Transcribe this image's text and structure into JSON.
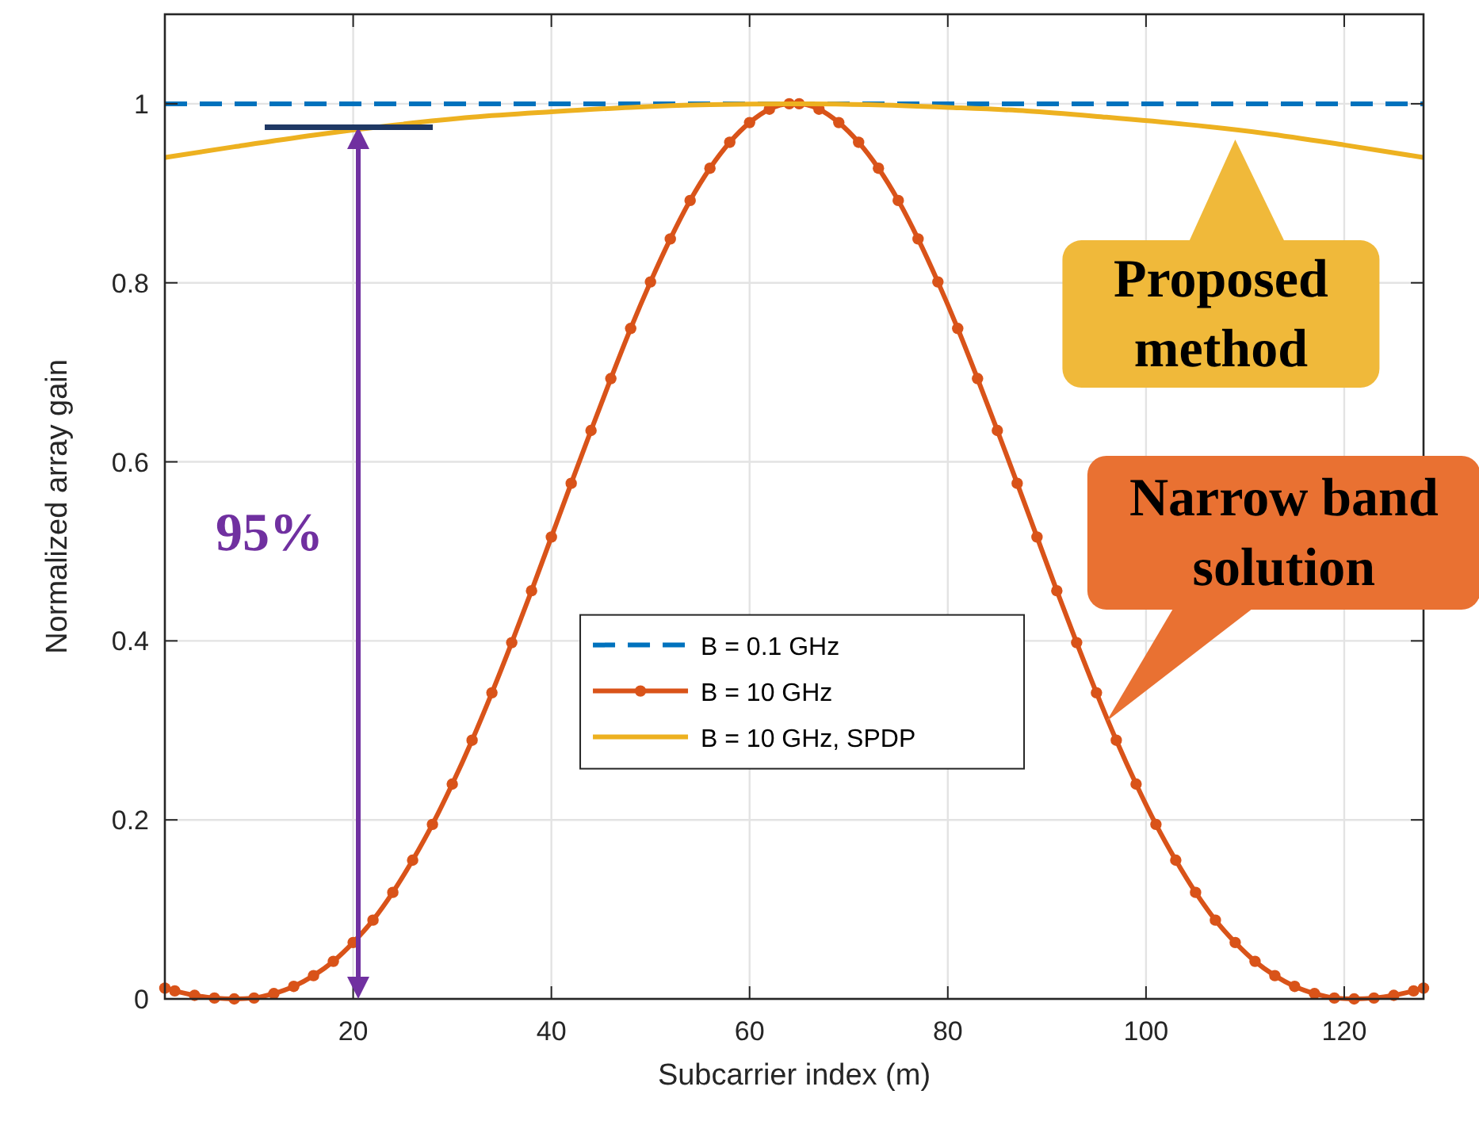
{
  "chart_data": {
    "type": "line",
    "xlabel": "Subcarrier index (m)",
    "ylabel": "Normalized array gain",
    "xlim": [
      1,
      128
    ],
    "ylim": [
      0,
      1.1
    ],
    "xticks": [
      20,
      40,
      60,
      80,
      100,
      120
    ],
    "yticks": [
      0,
      0.2,
      0.4,
      0.6,
      0.8,
      1
    ],
    "grid": true,
    "legend": "center",
    "series": [
      {
        "name": "B = 0.1 GHz",
        "color": "#0072bd",
        "line_style": "dashed",
        "marker": "none",
        "x": [
          1,
          128
        ],
        "values": [
          1,
          1
        ]
      },
      {
        "name": "B = 10 GHz",
        "color": "#d95319",
        "line_style": "solid",
        "marker": "circle",
        "x": [
          1,
          2,
          4,
          6,
          8,
          10,
          12,
          14,
          16,
          18,
          20,
          22,
          24,
          26,
          28,
          30,
          32,
          34,
          36,
          38,
          40,
          42,
          44,
          46,
          48,
          50,
          52,
          54,
          56,
          58,
          60,
          62,
          64,
          65,
          67,
          69,
          71,
          73,
          75,
          77,
          79,
          81,
          83,
          85,
          87,
          89,
          91,
          93,
          95,
          97,
          99,
          101,
          103,
          105,
          107,
          109,
          111,
          113,
          115,
          117,
          119,
          121,
          123,
          125,
          127,
          128
        ],
        "values": [
          0.012,
          0.009,
          0.004,
          0.001,
          0,
          0.001,
          0.006,
          0.014,
          0.026,
          0.042,
          0.063,
          0.088,
          0.119,
          0.155,
          0.195,
          0.24,
          0.289,
          0.342,
          0.398,
          0.456,
          0.516,
          0.576,
          0.635,
          0.693,
          0.749,
          0.801,
          0.849,
          0.892,
          0.928,
          0.957,
          0.979,
          0.994,
          1,
          1,
          0.994,
          0.979,
          0.957,
          0.928,
          0.892,
          0.849,
          0.801,
          0.749,
          0.693,
          0.635,
          0.576,
          0.516,
          0.456,
          0.398,
          0.342,
          0.289,
          0.24,
          0.195,
          0.155,
          0.119,
          0.088,
          0.063,
          0.042,
          0.026,
          0.014,
          0.006,
          0.001,
          0,
          0.001,
          0.004,
          0.009,
          0.012
        ]
      },
      {
        "name": "B = 10 GHz, SPDP",
        "color": "#edb120",
        "line_style": "solid",
        "marker": "none",
        "x": [
          1,
          8,
          16,
          24,
          32,
          40,
          48,
          56,
          64.5,
          72,
          80,
          88,
          96,
          104,
          112,
          120,
          128
        ],
        "values": [
          0.94,
          0.952,
          0.965,
          0.976,
          0.985,
          0.991,
          0.996,
          0.999,
          1,
          0.999,
          0.996,
          0.992,
          0.985,
          0.977,
          0.967,
          0.954,
          0.94
        ]
      }
    ],
    "annotations": [
      "95%",
      {
        "text": "Proposed\nmethod",
        "x": 109,
        "y": 0.96
      },
      {
        "text": "Narrow band\nsolution",
        "x": 96,
        "y": 0.31
      }
    ]
  }
}
